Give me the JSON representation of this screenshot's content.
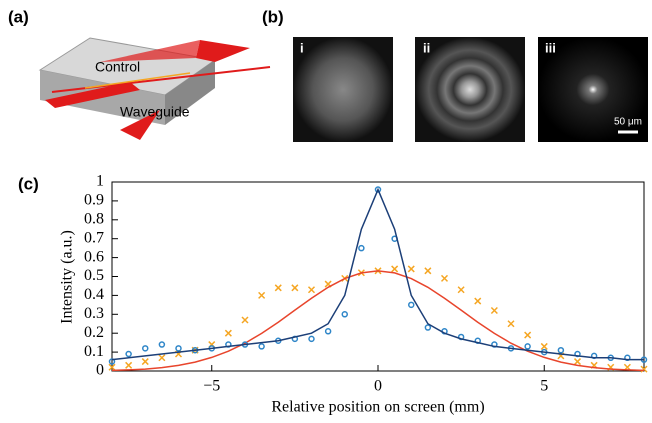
{
  "panels": {
    "a": {
      "label": "(a)",
      "control": "Control",
      "waveguide": "Waveguide"
    },
    "b": {
      "label": "(b)",
      "images": [
        "i",
        "ii",
        "iii"
      ],
      "scale": "50 μm"
    },
    "c": {
      "label": "(c)"
    }
  },
  "chart_data": {
    "type": "line",
    "x_label": "Relative position on screen (mm)",
    "y_label": "Intensity (a.u.)",
    "x": [
      -8,
      -7.5,
      -7,
      -6.5,
      -6,
      -5.5,
      -5,
      -4.5,
      -4,
      -3.5,
      -3,
      -2.5,
      -2,
      -1.5,
      -1,
      -0.5,
      0,
      0.5,
      1,
      1.5,
      2,
      2.5,
      3,
      3.5,
      4,
      4.5,
      5,
      5.5,
      6,
      6.5,
      7,
      7.5,
      8
    ],
    "series": [
      {
        "color": "#f5a623",
        "marker": "x",
        "values": [
          0.02,
          0.03,
          0.05,
          0.07,
          0.09,
          0.11,
          0.14,
          0.2,
          0.27,
          0.4,
          0.44,
          0.44,
          0.43,
          0.46,
          0.49,
          0.52,
          0.53,
          0.54,
          0.54,
          0.53,
          0.49,
          0.43,
          0.37,
          0.32,
          0.25,
          0.19,
          0.13,
          0.08,
          0.05,
          0.03,
          0.02,
          0.02,
          0.01
        ]
      },
      {
        "color": "#e8452c",
        "marker": "none",
        "values": [
          0.003,
          0.006,
          0.01,
          0.018,
          0.03,
          0.047,
          0.072,
          0.105,
          0.147,
          0.199,
          0.258,
          0.322,
          0.385,
          0.443,
          0.489,
          0.519,
          0.53,
          0.519,
          0.489,
          0.443,
          0.385,
          0.322,
          0.258,
          0.199,
          0.147,
          0.105,
          0.072,
          0.047,
          0.03,
          0.018,
          0.01,
          0.006,
          0.003
        ]
      },
      {
        "color": "#2f86c8",
        "marker": "o",
        "values": [
          0.05,
          0.09,
          0.12,
          0.14,
          0.12,
          0.11,
          0.12,
          0.14,
          0.14,
          0.13,
          0.16,
          0.17,
          0.17,
          0.21,
          0.3,
          0.65,
          0.96,
          0.7,
          0.35,
          0.23,
          0.21,
          0.18,
          0.16,
          0.14,
          0.12,
          0.13,
          0.1,
          0.11,
          0.09,
          0.08,
          0.07,
          0.07,
          0.06
        ]
      },
      {
        "color": "#1c3f78",
        "marker": "none",
        "values": [
          0.06,
          0.07,
          0.08,
          0.09,
          0.1,
          0.11,
          0.12,
          0.13,
          0.14,
          0.15,
          0.16,
          0.18,
          0.2,
          0.25,
          0.4,
          0.75,
          0.96,
          0.75,
          0.4,
          0.25,
          0.2,
          0.17,
          0.15,
          0.13,
          0.12,
          0.11,
          0.1,
          0.09,
          0.08,
          0.07,
          0.07,
          0.06,
          0.06
        ]
      }
    ],
    "xlim": [
      -8,
      8
    ],
    "xticks": [
      {
        "value": -5,
        "label": "−5"
      },
      0,
      5
    ],
    "ylim": [
      0,
      1
    ],
    "yticks": [
      0,
      0.1,
      0.2,
      0.3,
      0.4,
      0.5,
      0.6,
      0.7,
      0.8,
      0.9,
      1
    ]
  }
}
